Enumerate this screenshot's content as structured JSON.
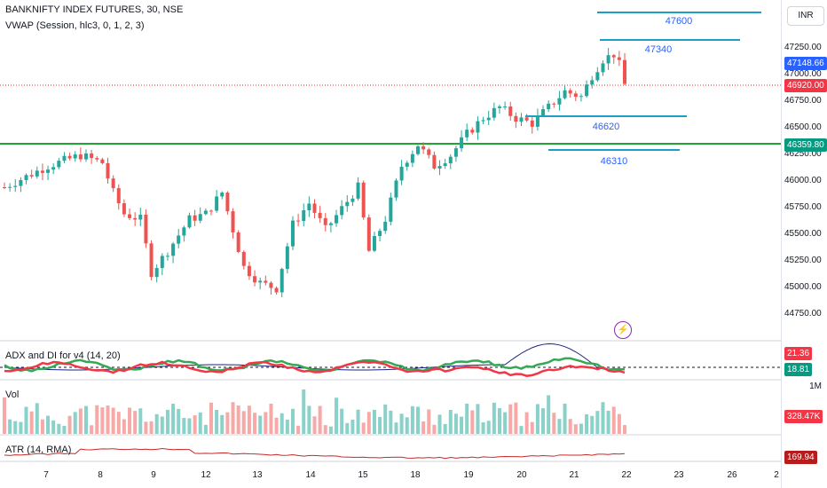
{
  "header": {
    "symbol": "BANKNIFTY INDEX FUTURES, 30, NSE",
    "indicator": "VWAP (Session, hlc3, 0, 1, 2, 3)",
    "currency": "INR"
  },
  "price_axis": {
    "ticks": [
      "47250.00",
      "47000.00",
      "46750.00",
      "46500.00",
      "46250.00",
      "46000.00",
      "45750.00",
      "45500.00",
      "45250.00",
      "45000.00",
      "44750.00"
    ],
    "tags": [
      {
        "label": "47148.66",
        "color": "#2962ff"
      },
      {
        "label": "46920.00",
        "color": "#f23645"
      },
      {
        "label": "46359.80",
        "color": "#089981"
      }
    ]
  },
  "levels": [
    {
      "label": "47600",
      "value": 47600
    },
    {
      "label": "47340",
      "value": 47340
    },
    {
      "label": "46620",
      "value": 46620
    },
    {
      "label": "46310",
      "value": 46310
    }
  ],
  "support_line": {
    "value": 46359.8,
    "color": "#21a336"
  },
  "adx": {
    "label": "ADX and DI for v4 (14, 20)",
    "tags": [
      {
        "label": "21.36",
        "color": "#f23645"
      },
      {
        "label": "18.81",
        "color": "#089981"
      }
    ]
  },
  "volume": {
    "label": "Vol",
    "axis_tick": "1M",
    "tag": {
      "label": "328.47K",
      "color": "#f23645"
    }
  },
  "atr": {
    "label": "ATR (14, RMA)",
    "tag": {
      "label": "169.94",
      "color": "#b71c1c"
    }
  },
  "time_axis": {
    "labels": [
      "7",
      "8",
      "9",
      "12",
      "13",
      "14",
      "15",
      "18",
      "19",
      "20",
      "21",
      "22",
      "23",
      "26",
      "2"
    ]
  },
  "chart_data": {
    "type": "candlestick",
    "y_range": [
      44650,
      47550
    ],
    "candle_count": 115,
    "last_close": 46920.0,
    "vwap_last": 47148.66
  },
  "colors": {
    "up": "#26a69a",
    "down": "#ef5350",
    "level": "#1aa0c8"
  }
}
